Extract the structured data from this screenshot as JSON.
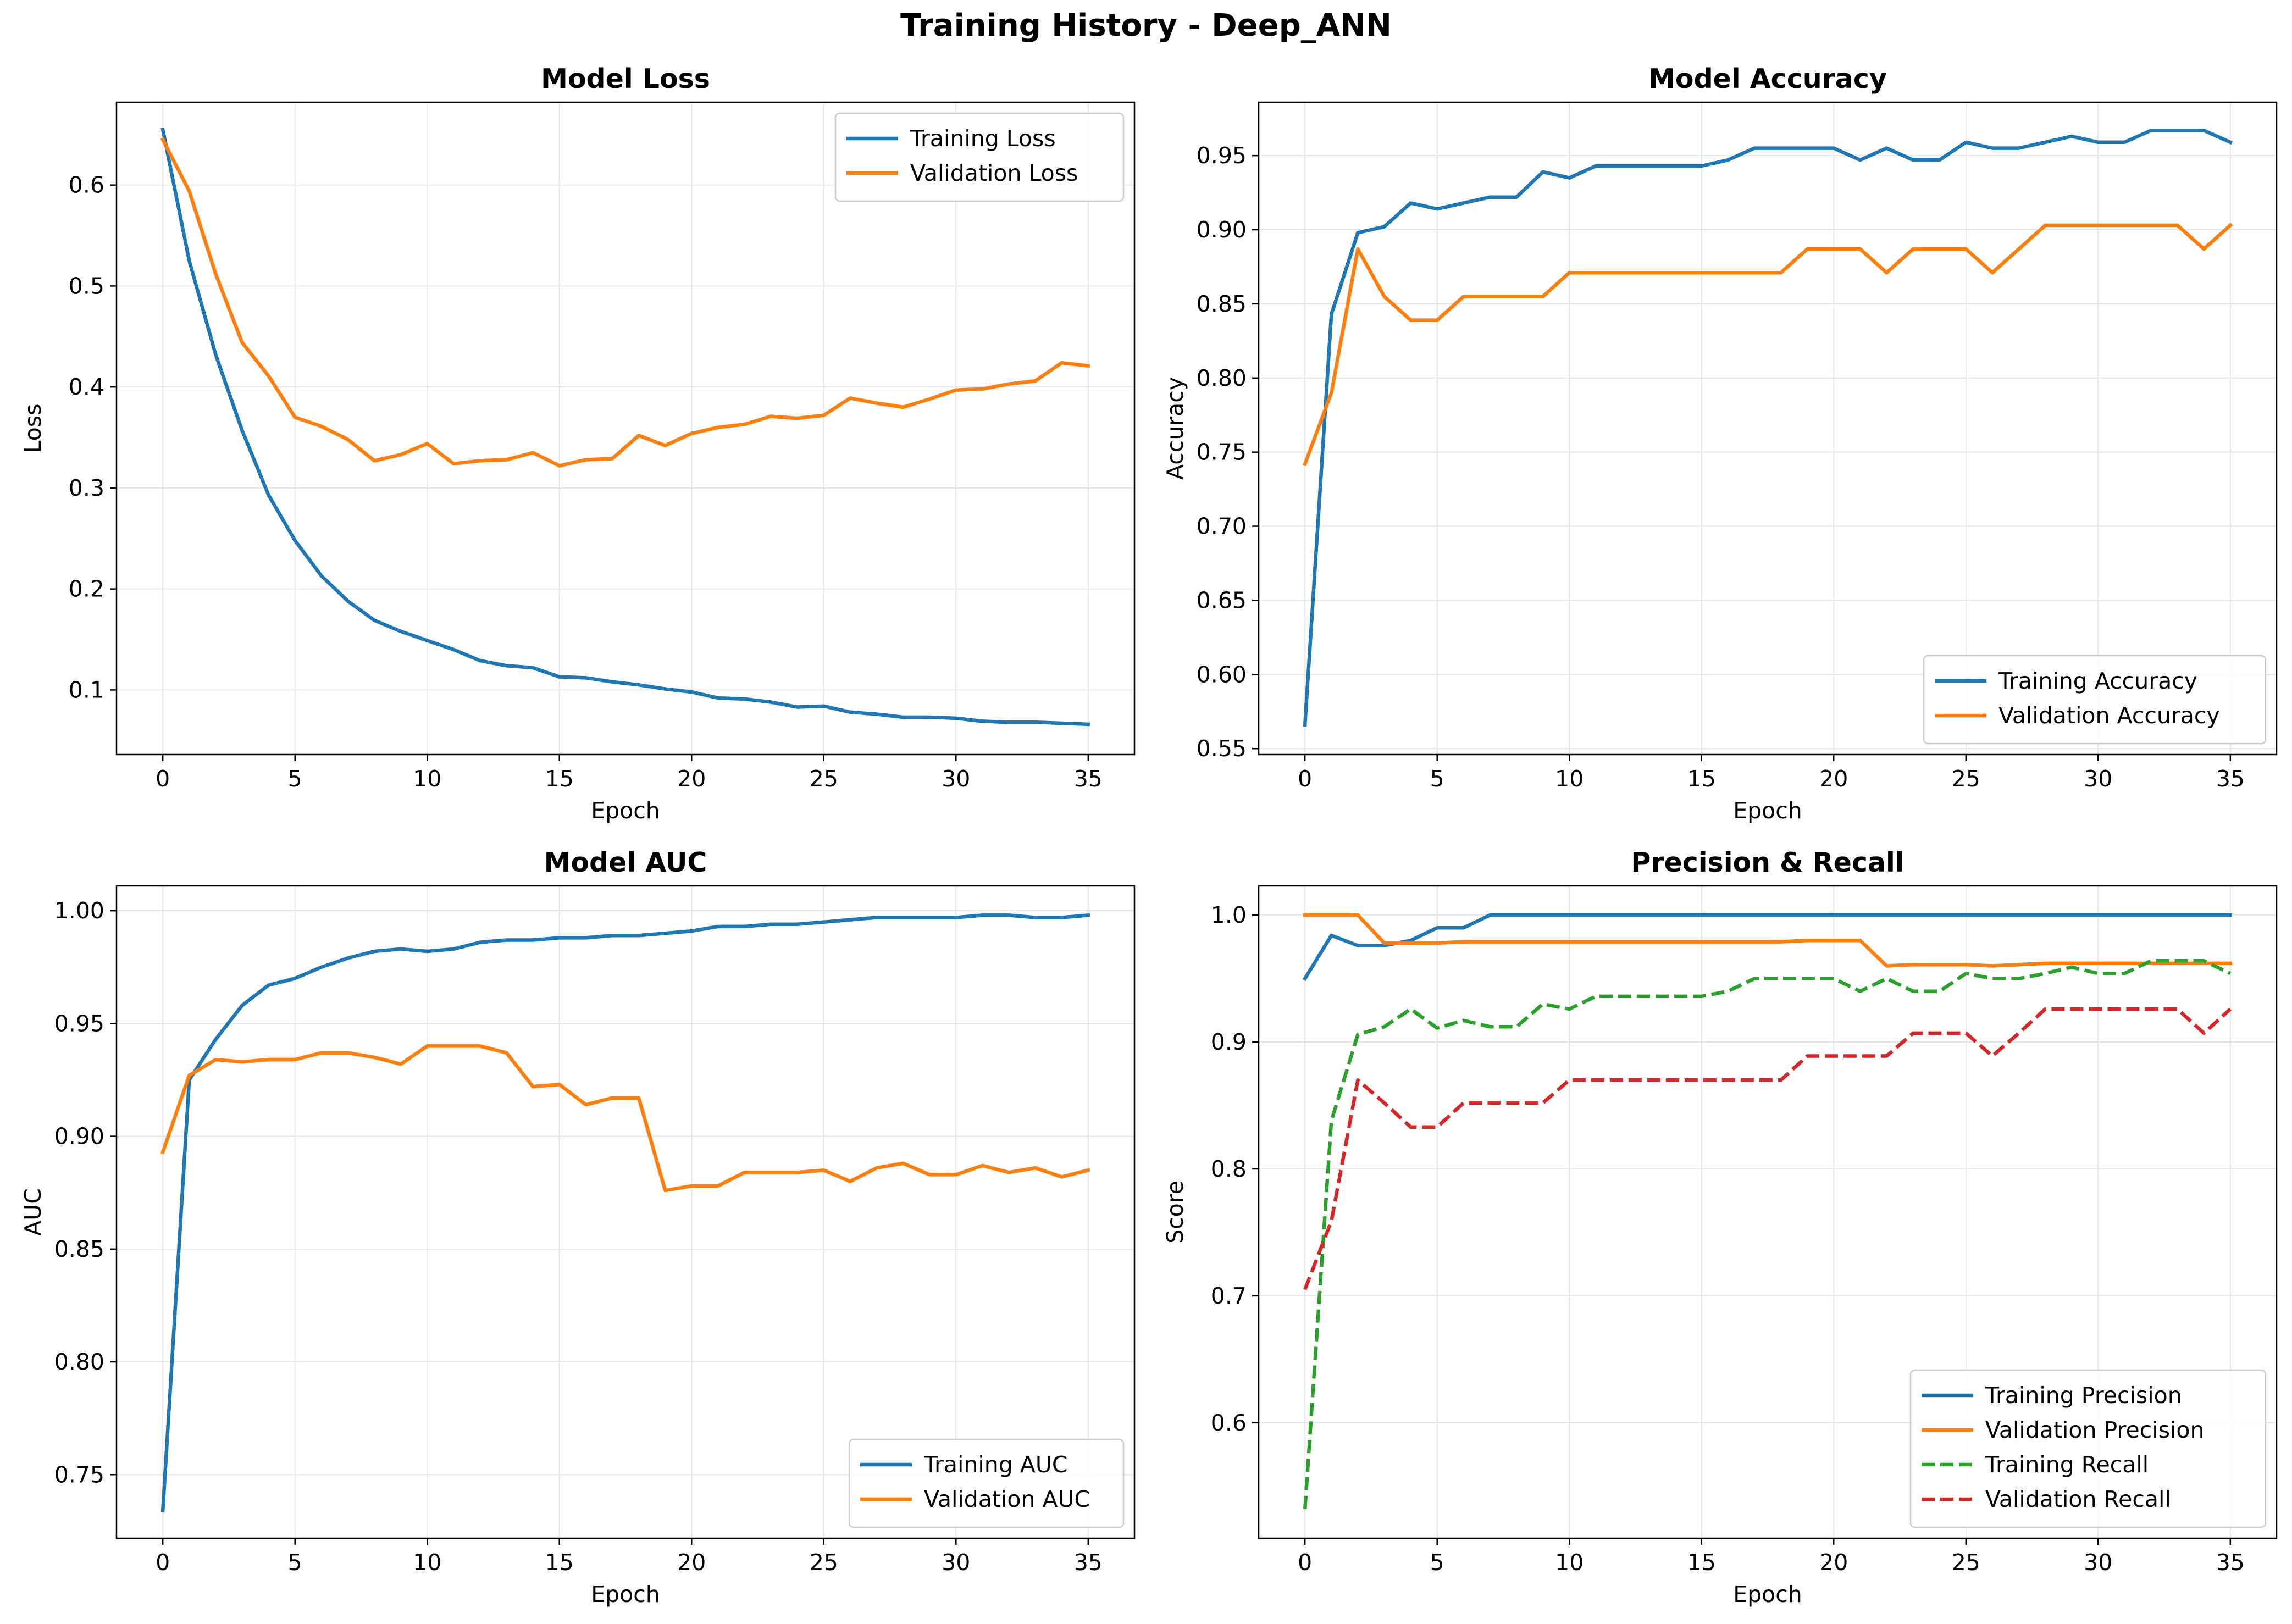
{
  "figure": {
    "suptitle": "Training History - Deep_ANN"
  },
  "colors": {
    "blue": "#1f77b4",
    "orange": "#ff7f0e",
    "green": "#2ca02c",
    "red": "#d62728",
    "grid": "#e6e6e6"
  },
  "chart_data": [
    {
      "type": "line",
      "title": "Model Loss",
      "xlabel": "Epoch",
      "ylabel": "Loss",
      "xlim": [
        -1.75,
        36.75
      ],
      "ylim": [
        0.036,
        0.682
      ],
      "xticks": [
        0,
        5,
        10,
        15,
        20,
        25,
        30,
        35
      ],
      "yticks": [
        0.1,
        0.2,
        0.3,
        0.4,
        0.5,
        0.6
      ],
      "ytick_labels": [
        "0.1",
        "0.2",
        "0.3",
        "0.4",
        "0.5",
        "0.6"
      ],
      "grid": true,
      "legend_loc": "upper right",
      "series": [
        {
          "name": "Training Loss",
          "color": "#1f77b4",
          "dashed": false,
          "values": [
            0.655,
            0.525,
            0.432,
            0.357,
            0.293,
            0.248,
            0.213,
            0.188,
            0.169,
            0.158,
            0.149,
            0.14,
            0.129,
            0.124,
            0.122,
            0.113,
            0.112,
            0.108,
            0.105,
            0.101,
            0.098,
            0.092,
            0.091,
            0.088,
            0.083,
            0.084,
            0.078,
            0.076,
            0.073,
            0.073,
            0.072,
            0.069,
            0.068,
            0.068,
            0.067,
            0.066
          ]
        },
        {
          "name": "Validation Loss",
          "color": "#ff7f0e",
          "dashed": false,
          "values": [
            0.645,
            0.594,
            0.512,
            0.444,
            0.411,
            0.37,
            0.361,
            0.348,
            0.327,
            0.333,
            0.344,
            0.324,
            0.327,
            0.328,
            0.335,
            0.322,
            0.328,
            0.329,
            0.352,
            0.342,
            0.354,
            0.36,
            0.363,
            0.371,
            0.369,
            0.372,
            0.389,
            0.384,
            0.38,
            0.388,
            0.397,
            0.398,
            0.403,
            0.406,
            0.424,
            0.421
          ]
        }
      ]
    },
    {
      "type": "line",
      "title": "Model Accuracy",
      "xlabel": "Epoch",
      "ylabel": "Accuracy",
      "xlim": [
        -1.75,
        36.75
      ],
      "ylim": [
        0.546,
        0.986
      ],
      "xticks": [
        0,
        5,
        10,
        15,
        20,
        25,
        30,
        35
      ],
      "yticks": [
        0.55,
        0.6,
        0.65,
        0.7,
        0.75,
        0.8,
        0.85,
        0.9,
        0.95
      ],
      "ytick_labels": [
        "0.55",
        "0.60",
        "0.65",
        "0.70",
        "0.75",
        "0.80",
        "0.85",
        "0.90",
        "0.95"
      ],
      "grid": true,
      "legend_loc": "lower right",
      "series": [
        {
          "name": "Training Accuracy",
          "color": "#1f77b4",
          "dashed": false,
          "values": [
            0.566,
            0.843,
            0.898,
            0.902,
            0.918,
            0.914,
            0.918,
            0.922,
            0.922,
            0.939,
            0.935,
            0.943,
            0.943,
            0.943,
            0.943,
            0.943,
            0.947,
            0.955,
            0.955,
            0.955,
            0.955,
            0.947,
            0.955,
            0.947,
            0.947,
            0.959,
            0.955,
            0.955,
            0.959,
            0.963,
            0.959,
            0.959,
            0.967,
            0.967,
            0.967,
            0.959
          ]
        },
        {
          "name": "Validation Accuracy",
          "color": "#ff7f0e",
          "dashed": false,
          "values": [
            0.742,
            0.79,
            0.887,
            0.855,
            0.839,
            0.839,
            0.855,
            0.855,
            0.855,
            0.855,
            0.871,
            0.871,
            0.871,
            0.871,
            0.871,
            0.871,
            0.871,
            0.871,
            0.871,
            0.887,
            0.887,
            0.887,
            0.871,
            0.887,
            0.887,
            0.887,
            0.871,
            0.887,
            0.903,
            0.903,
            0.903,
            0.903,
            0.903,
            0.903,
            0.887,
            0.903
          ]
        }
      ]
    },
    {
      "type": "line",
      "title": "Model AUC",
      "xlabel": "Epoch",
      "ylabel": "AUC",
      "xlim": [
        -1.75,
        36.75
      ],
      "ylim": [
        0.7218,
        1.011
      ],
      "xticks": [
        0,
        5,
        10,
        15,
        20,
        25,
        30,
        35
      ],
      "yticks": [
        0.75,
        0.8,
        0.85,
        0.9,
        0.95,
        1.0
      ],
      "ytick_labels": [
        "0.75",
        "0.80",
        "0.85",
        "0.90",
        "0.95",
        "1.00"
      ],
      "grid": true,
      "legend_loc": "lower right",
      "series": [
        {
          "name": "Training AUC",
          "color": "#1f77b4",
          "dashed": false,
          "values": [
            0.734,
            0.925,
            0.943,
            0.958,
            0.967,
            0.97,
            0.975,
            0.979,
            0.982,
            0.983,
            0.982,
            0.983,
            0.986,
            0.987,
            0.987,
            0.988,
            0.988,
            0.989,
            0.989,
            0.99,
            0.991,
            0.993,
            0.993,
            0.994,
            0.994,
            0.995,
            0.996,
            0.997,
            0.997,
            0.997,
            0.997,
            0.998,
            0.998,
            0.997,
            0.997,
            0.998
          ]
        },
        {
          "name": "Validation AUC",
          "color": "#ff7f0e",
          "dashed": false,
          "values": [
            0.893,
            0.927,
            0.934,
            0.933,
            0.934,
            0.934,
            0.937,
            0.937,
            0.935,
            0.932,
            0.94,
            0.94,
            0.94,
            0.937,
            0.922,
            0.923,
            0.914,
            0.917,
            0.917,
            0.876,
            0.878,
            0.878,
            0.884,
            0.884,
            0.884,
            0.885,
            0.88,
            0.886,
            0.888,
            0.883,
            0.883,
            0.887,
            0.884,
            0.886,
            0.882,
            0.885
          ]
        }
      ]
    },
    {
      "type": "line",
      "title": "Precision & Recall",
      "xlabel": "Epoch",
      "ylabel": "Score",
      "xlim": [
        -1.75,
        36.75
      ],
      "ylim": [
        0.509,
        1.023
      ],
      "xticks": [
        0,
        5,
        10,
        15,
        20,
        25,
        30,
        35
      ],
      "yticks": [
        0.6,
        0.7,
        0.8,
        0.9,
        1.0
      ],
      "ytick_labels": [
        "0.6",
        "0.7",
        "0.8",
        "0.9",
        "1.0"
      ],
      "grid": true,
      "legend_loc": "lower right",
      "series": [
        {
          "name": "Training Precision",
          "color": "#1f77b4",
          "dashed": false,
          "values": [
            0.95,
            0.984,
            0.976,
            0.976,
            0.98,
            0.99,
            0.99,
            1.0,
            1.0,
            1.0,
            1.0,
            1.0,
            1.0,
            1.0,
            1.0,
            1.0,
            1.0,
            1.0,
            1.0,
            1.0,
            1.0,
            1.0,
            1.0,
            1.0,
            1.0,
            1.0,
            1.0,
            1.0,
            1.0,
            1.0,
            1.0,
            1.0,
            1.0,
            1.0,
            1.0,
            1.0
          ]
        },
        {
          "name": "Validation Precision",
          "color": "#ff7f0e",
          "dashed": false,
          "values": [
            1.0,
            1.0,
            1.0,
            0.978,
            0.978,
            0.978,
            0.979,
            0.979,
            0.979,
            0.979,
            0.979,
            0.979,
            0.979,
            0.979,
            0.979,
            0.979,
            0.979,
            0.979,
            0.979,
            0.98,
            0.98,
            0.98,
            0.96,
            0.961,
            0.961,
            0.961,
            0.96,
            0.961,
            0.962,
            0.962,
            0.962,
            0.962,
            0.962,
            0.962,
            0.962,
            0.962
          ]
        },
        {
          "name": "Training Recall",
          "color": "#2ca02c",
          "dashed": true,
          "values": [
            0.532,
            0.838,
            0.906,
            0.912,
            0.926,
            0.911,
            0.917,
            0.912,
            0.912,
            0.93,
            0.926,
            0.936,
            0.936,
            0.936,
            0.936,
            0.936,
            0.94,
            0.95,
            0.95,
            0.95,
            0.95,
            0.94,
            0.95,
            0.94,
            0.94,
            0.954,
            0.95,
            0.95,
            0.954,
            0.959,
            0.954,
            0.954,
            0.964,
            0.964,
            0.964,
            0.954
          ]
        },
        {
          "name": "Validation Recall",
          "color": "#d62728",
          "dashed": true,
          "values": [
            0.705,
            0.759,
            0.87,
            0.852,
            0.833,
            0.833,
            0.852,
            0.852,
            0.852,
            0.852,
            0.87,
            0.87,
            0.87,
            0.87,
            0.87,
            0.87,
            0.87,
            0.87,
            0.87,
            0.889,
            0.889,
            0.889,
            0.889,
            0.907,
            0.907,
            0.907,
            0.889,
            0.907,
            0.926,
            0.926,
            0.926,
            0.926,
            0.926,
            0.926,
            0.907,
            0.926
          ]
        }
      ]
    }
  ]
}
